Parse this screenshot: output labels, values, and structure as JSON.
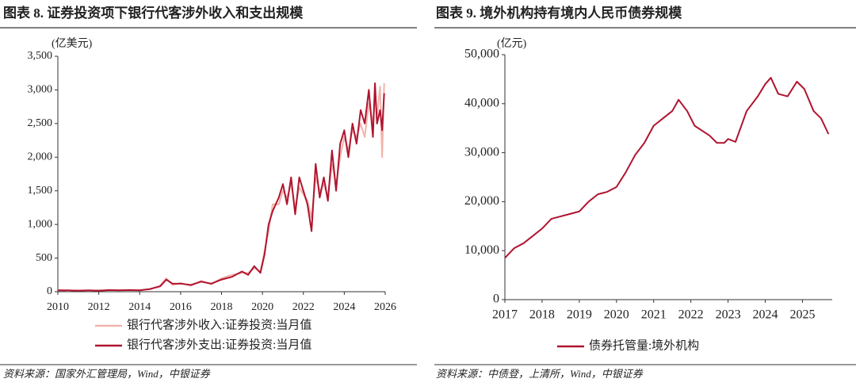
{
  "chart_data": [
    {
      "type": "line",
      "title": "图表 8. 证券投资项下银行代客涉外收入和支出规模",
      "y_label": "(亿美元)",
      "source": "资料来源：国家外汇管理局，Wind，中银证券",
      "x": [
        2010,
        2010.5,
        2011,
        2011.5,
        2012,
        2012.5,
        2013,
        2013.5,
        2014,
        2014.5,
        2015,
        2015.3,
        2015.6,
        2016,
        2016.5,
        2017,
        2017.5,
        2018,
        2018.5,
        2019,
        2019.3,
        2019.6,
        2019.9,
        2020.1,
        2020.3,
        2020.5,
        2020.8,
        2021,
        2021.2,
        2021.4,
        2021.6,
        2021.8,
        2022,
        2022.2,
        2022.4,
        2022.6,
        2022.8,
        2023,
        2023.2,
        2023.4,
        2023.6,
        2023.8,
        2024,
        2024.2,
        2024.4,
        2024.6,
        2024.8,
        2025,
        2025.2,
        2025.4,
        2025.5,
        2025.6,
        2025.75,
        2025.85,
        2025.95
      ],
      "series": [
        {
          "name": "银行代客涉外收入:证券投资:当月值",
          "color": "#f2b3ab",
          "values": [
            25,
            15,
            20,
            15,
            20,
            20,
            25,
            20,
            25,
            35,
            90,
            200,
            100,
            130,
            90,
            160,
            110,
            200,
            250,
            280,
            280,
            350,
            300,
            600,
            900,
            1300,
            1300,
            1500,
            1400,
            1600,
            1250,
            1550,
            1450,
            1350,
            1100,
            1700,
            1500,
            1600,
            1400,
            1900,
            1600,
            2000,
            2300,
            2100,
            2400,
            2300,
            2500,
            2300,
            2800,
            2500,
            2900,
            2600,
            3050,
            2000,
            3100
          ]
        },
        {
          "name": "银行代客涉外支出:证券投资:当月值",
          "color": "#b0142f",
          "values": [
            20,
            20,
            15,
            20,
            15,
            25,
            20,
            25,
            20,
            40,
            80,
            180,
            120,
            120,
            100,
            150,
            120,
            180,
            220,
            300,
            250,
            380,
            280,
            550,
            1000,
            1200,
            1400,
            1600,
            1300,
            1700,
            1150,
            1700,
            1500,
            1300,
            900,
            1900,
            1400,
            1700,
            1350,
            2100,
            1500,
            2200,
            2400,
            2000,
            2500,
            2200,
            2700,
            2500,
            3000,
            2300,
            3100,
            2500,
            2700,
            2400,
            2950
          ]
        }
      ],
      "xlim": [
        2010,
        2026
      ],
      "xticks": [
        2010,
        2012,
        2014,
        2016,
        2018,
        2020,
        2022,
        2024,
        2026
      ],
      "ylim": [
        0,
        3500
      ],
      "yticks": [
        0,
        500,
        {
          "value": 1000,
          "label": "1,000"
        },
        {
          "value": 1500,
          "label": "1,500"
        },
        {
          "value": 2000,
          "label": "2,000"
        },
        {
          "value": 2500,
          "label": "2,500"
        },
        {
          "value": 3000,
          "label": "3,000"
        },
        {
          "value": 3500,
          "label": "3,500"
        }
      ]
    },
    {
      "type": "line",
      "title": "图表 9. 境外机构持有境内人民币债券规模",
      "y_label": "(亿元)",
      "source": "资料来源：中债登，上清所，Wind，中银证券",
      "x": [
        2017,
        2017.25,
        2017.5,
        2017.75,
        2018,
        2018.25,
        2018.5,
        2018.75,
        2019,
        2019.25,
        2019.5,
        2019.75,
        2020,
        2020.25,
        2020.5,
        2020.75,
        2021,
        2021.25,
        2021.5,
        2021.67,
        2021.9,
        2022.1,
        2022.3,
        2022.5,
        2022.7,
        2022.9,
        2023,
        2023.2,
        2023.5,
        2023.8,
        2024,
        2024.15,
        2024.35,
        2024.6,
        2024.85,
        2025.05,
        2025.3,
        2025.5,
        2025.7
      ],
      "series": [
        {
          "name": "债券托管量:境外机构",
          "color": "#b0142f",
          "values": [
            8500,
            10500,
            11500,
            13000,
            14500,
            16500,
            17000,
            17500,
            18000,
            20000,
            21500,
            22000,
            23000,
            26000,
            29500,
            32000,
            35500,
            37000,
            38500,
            40800,
            38500,
            35500,
            34500,
            33500,
            32000,
            32000,
            32800,
            32200,
            38500,
            41500,
            44000,
            45300,
            42000,
            41500,
            44500,
            43000,
            38500,
            37000,
            33800
          ]
        }
      ],
      "xlim": [
        2017,
        2025.8
      ],
      "xticks": [
        2017,
        2018,
        2019,
        2020,
        2021,
        2022,
        2023,
        2024,
        2025
      ],
      "ylim": [
        0,
        50000
      ],
      "yticks": [
        0,
        {
          "value": 10000,
          "label": "10,000"
        },
        {
          "value": 20000,
          "label": "20,000"
        },
        {
          "value": 30000,
          "label": "30,000"
        },
        {
          "value": 40000,
          "label": "40,000"
        },
        {
          "value": 50000,
          "label": "50,000"
        }
      ]
    }
  ]
}
